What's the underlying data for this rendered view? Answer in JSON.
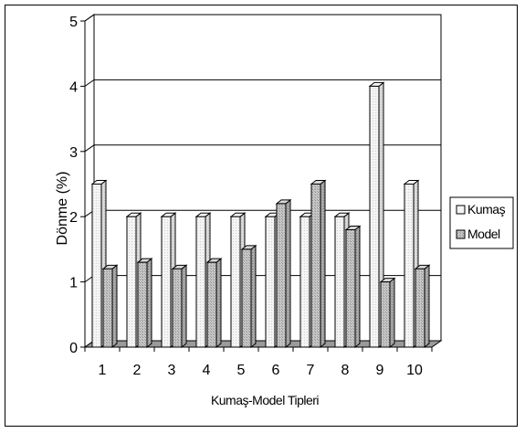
{
  "chart_data": {
    "type": "bar",
    "style": "3d-clustered-column",
    "title": "",
    "xlabel": "Kumaş-Model Tipleri",
    "ylabel": "Dönme (%)",
    "ylim": [
      0,
      5
    ],
    "yticks": [
      "0",
      "1",
      "2",
      "3",
      "4",
      "5"
    ],
    "categories": [
      "1",
      "2",
      "3",
      "4",
      "5",
      "6",
      "7",
      "8",
      "9",
      "10"
    ],
    "series": [
      {
        "name": "Kumaş",
        "values": [
          2.5,
          2.0,
          2.0,
          2.0,
          2.0,
          2.0,
          2.0,
          2.0,
          4.0,
          2.5
        ],
        "color": "#f2f2f2"
      },
      {
        "name": "Model",
        "values": [
          1.2,
          1.3,
          1.2,
          1.3,
          1.5,
          2.2,
          2.5,
          1.8,
          1.0,
          1.2
        ],
        "color": "#b4b4b4"
      }
    ],
    "grid": "horizontal",
    "legend": "right"
  }
}
